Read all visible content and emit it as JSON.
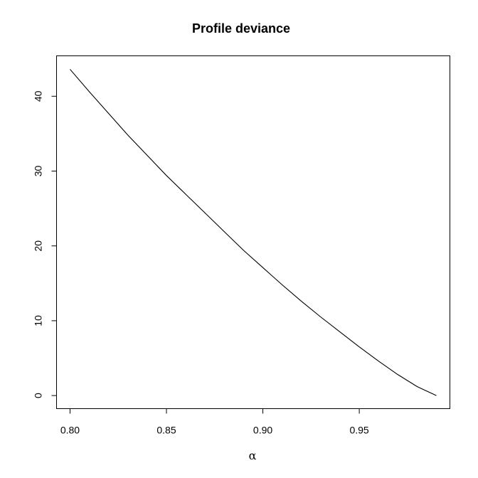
{
  "chart_data": {
    "type": "line",
    "title": "Profile deviance",
    "xlabel": "α",
    "ylabel": "",
    "xlim": [
      0.793,
      0.997
    ],
    "ylim": [
      -1.75,
      45.4
    ],
    "x_ticks": [
      0.8,
      0.85,
      0.9,
      0.95
    ],
    "x_tick_labels": [
      "0.80",
      "0.85",
      "0.90",
      "0.95"
    ],
    "y_ticks": [
      0,
      10,
      20,
      30,
      40
    ],
    "y_tick_labels": [
      "0",
      "10",
      "20",
      "30",
      "40"
    ],
    "grid": false,
    "series": [
      {
        "x": [
          0.8,
          0.81,
          0.82,
          0.83,
          0.84,
          0.85,
          0.86,
          0.87,
          0.88,
          0.89,
          0.9,
          0.91,
          0.92,
          0.93,
          0.94,
          0.95,
          0.96,
          0.97,
          0.98,
          0.99
        ],
        "values": [
          43.6,
          40.6,
          37.7,
          34.8,
          32.1,
          29.4,
          26.9,
          24.4,
          21.9,
          19.4,
          17.1,
          14.8,
          12.6,
          10.5,
          8.5,
          6.5,
          4.6,
          2.8,
          1.2,
          0.0
        ]
      }
    ]
  }
}
